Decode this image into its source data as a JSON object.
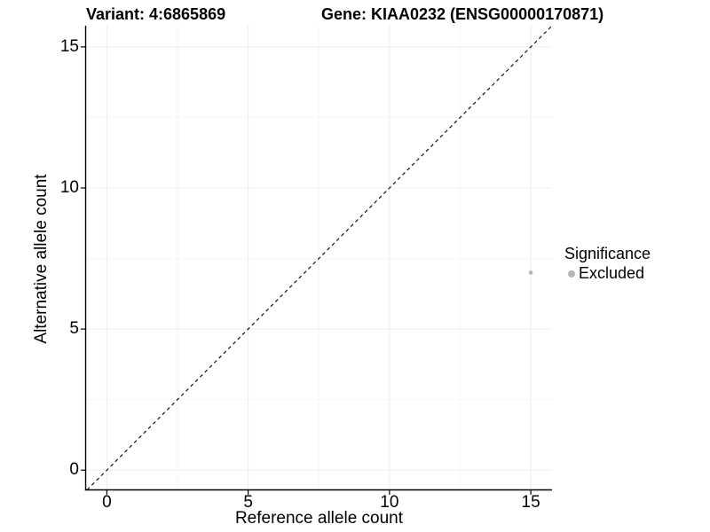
{
  "titles": {
    "left": "Variant: 4:6865869",
    "right": "Gene: KIAA0232 (ENSG00000170871)"
  },
  "chart_data": {
    "type": "scatter",
    "title": "Variant: 4:6865869   Gene: KIAA0232 (ENSG00000170871)",
    "xlabel": "Reference allele count",
    "ylabel": "Alternative allele count",
    "xlim": [
      -0.75,
      15.75
    ],
    "ylim": [
      -0.7,
      15.75
    ],
    "xticks": [
      0,
      5,
      10,
      15
    ],
    "yticks": [
      0,
      5,
      10,
      15
    ],
    "xticks_minor": [
      2.5,
      7.5,
      12.5
    ],
    "yticks_minor": [
      2.5,
      7.5,
      12.5
    ],
    "grid": "major-and-minor",
    "legend_position": "right",
    "points": [
      {
        "x": 15,
        "y": 7,
        "group": "Excluded"
      }
    ],
    "reference_line": {
      "slope": 1,
      "intercept": 0,
      "style": "dashed",
      "color": "#000000"
    },
    "point_color": "#b5b5b5",
    "grid_major_color": "#ececec",
    "grid_minor_color": "#f6f6f6",
    "axis_color": "#000000"
  },
  "legend": {
    "title": "Significance",
    "entries": [
      {
        "label": "Excluded",
        "color": "#b5b5b5",
        "icon": "dot-icon"
      }
    ]
  }
}
